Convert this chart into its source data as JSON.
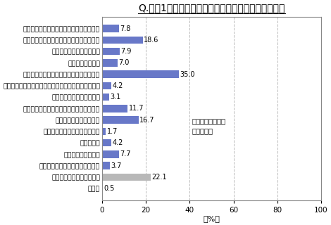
{
  "title": "Q.直近1年以内に、市販の鍋つゆを利用しましたか？",
  "categories": [
    "濃縮タイプ：パウチパック・キャップつき",
    "濃縮タイプ：パウチパック・キャップなし",
    "濃縮タイプ：ペットボトル",
    "濃縮タイプ：ビン",
    "ストレート：パウチパック（２人前以上）",
    "ストレート：パウチパック（１人前ずつの小袋入り）",
    "ストレート：ペットボトル",
    "１人分ずつ小分け容器に入った濃縮タイプ",
    "キューブタイプ（固形）",
    "フリーズドライタイプ（固形）",
    "粉末タイプ",
    "その他・わからない",
    "直近１年以内には利用していない",
    "市販の鍋つゆは利用しない",
    "無回答"
  ],
  "values": [
    7.8,
    18.6,
    7.9,
    7.0,
    35.0,
    4.2,
    3.1,
    11.7,
    16.7,
    1.7,
    4.2,
    7.7,
    3.7,
    22.1,
    0.5
  ],
  "bar_colors": [
    "#6878c8",
    "#6878c8",
    "#6878c8",
    "#6878c8",
    "#6878c8",
    "#6878c8",
    "#6878c8",
    "#6878c8",
    "#6878c8",
    "#6878c8",
    "#6878c8",
    "#6878c8",
    "#6878c8",
    "#b8b8b8",
    "#6878c8"
  ],
  "xlabel": "（%）",
  "xlim": [
    0,
    100
  ],
  "xticks": [
    0,
    20,
    40,
    60,
    80,
    100
  ],
  "annotation_line1": "：自宅でなべ料理",
  "annotation_line2": "を食べる人",
  "title_fontsize": 10,
  "label_fontsize": 6.8,
  "value_fontsize": 7.0,
  "background_color": "#ffffff",
  "border_color": "#888888",
  "grid_color": "#bbbbbb"
}
